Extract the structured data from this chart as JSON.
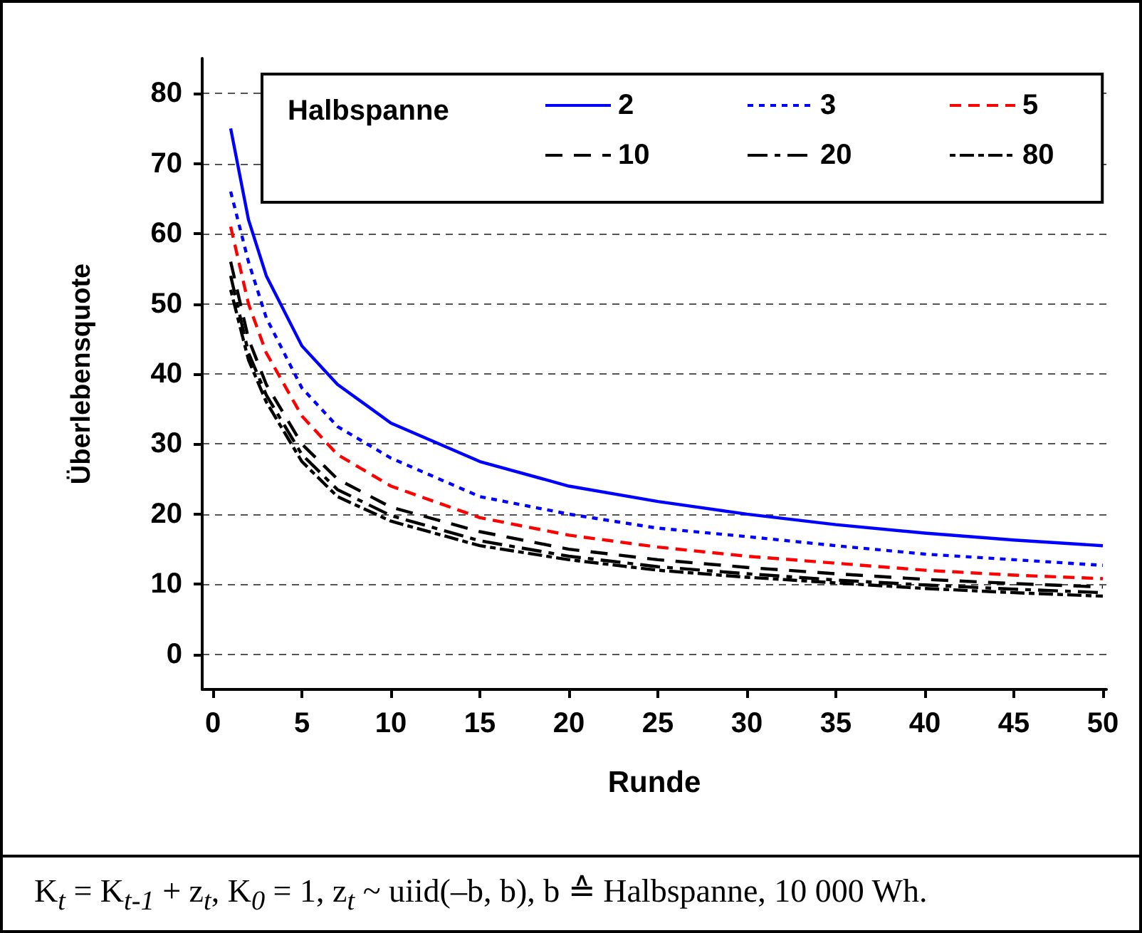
{
  "chart_data": {
    "type": "line",
    "xlabel": "Runde",
    "ylabel": "Überlebensquote",
    "legend_title": "Halbspanne",
    "x": [
      1,
      2,
      3,
      5,
      7,
      10,
      15,
      20,
      25,
      30,
      35,
      40,
      45,
      50
    ],
    "xlim": [
      -0.6,
      50.2
    ],
    "xticks": [
      0,
      5,
      10,
      15,
      20,
      25,
      30,
      35,
      40,
      45,
      50
    ],
    "ylim": [
      -5,
      85
    ],
    "yticks": [
      0,
      10,
      20,
      30,
      40,
      50,
      60,
      70,
      80
    ],
    "grid": "y",
    "legend": "top right",
    "marker": "none",
    "series": [
      {
        "name": "2",
        "color": "#0000ff",
        "line_style": "solid",
        "values": [
          75,
          62,
          54,
          44,
          38.5,
          33,
          27.5,
          24,
          21.8,
          20,
          18.5,
          17.3,
          16.3,
          15.5
        ]
      },
      {
        "name": "3",
        "color": "#0000ff",
        "line_style": "dotted",
        "values": [
          66,
          56,
          48,
          38,
          32.5,
          28,
          22.5,
          20,
          18,
          16.8,
          15.5,
          14.3,
          13.5,
          12.7
        ]
      },
      {
        "name": "5",
        "color": "#ff0000",
        "line_style": "dashed",
        "values": [
          61,
          50,
          43,
          34,
          28.5,
          24,
          19.5,
          17,
          15.3,
          14,
          13,
          12,
          11.3,
          10.8
        ]
      },
      {
        "name": "10",
        "color": "#000000",
        "line_style": "dashed",
        "values": [
          56,
          45,
          38.5,
          30,
          25,
          21,
          17.5,
          15,
          13.5,
          12.4,
          11.5,
          10.7,
          10.1,
          9.6
        ]
      },
      {
        "name": "20",
        "color": "#000000",
        "line_style": "dashed",
        "values": [
          54,
          43,
          37,
          28.5,
          23.5,
          19.8,
          16.2,
          14,
          12.5,
          11.5,
          10.6,
          9.9,
          9.3,
          8.8
        ]
      },
      {
        "name": "80",
        "color": "#000000",
        "line_style": "dashed",
        "values": [
          52,
          42,
          36,
          27.5,
          22.5,
          19,
          15.5,
          13.5,
          12,
          11,
          10.2,
          9.4,
          8.8,
          8.3
        ]
      }
    ],
    "annotations": [
      "K$_{t}$ = K$_{t-1}$ + z$_{t}$, K$_{0}$ = 1, z$_{t}$ ~ uiid(–b, b), b ≙ Halbspanne, 10 000 Wh."
    ]
  }
}
